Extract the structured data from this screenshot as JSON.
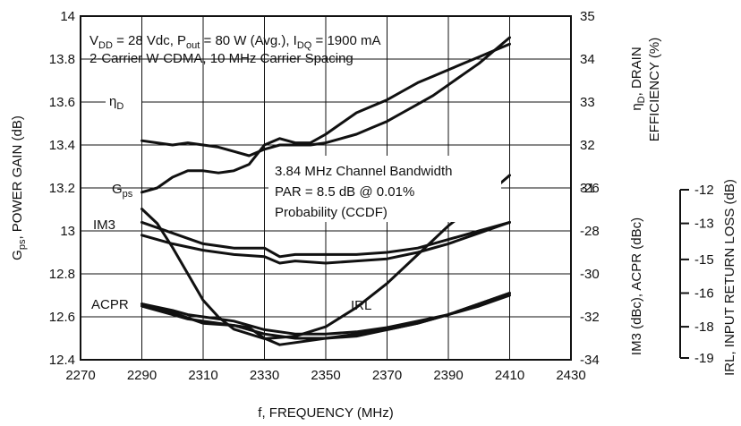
{
  "chart_data": {
    "type": "line",
    "xlabel": "f, FREQUENCY (MHz)",
    "x_ticks": [
      "2270",
      "2290",
      "2310",
      "2330",
      "2350",
      "2370",
      "2390",
      "2410",
      "2430"
    ],
    "xlim": [
      2270,
      2430
    ],
    "ylabel_left": "Gps, POWER GAIN (dB)",
    "yleft_ticks": [
      "12.4",
      "12.6",
      "12.8",
      "13",
      "13.2",
      "13.4",
      "13.6",
      "13.8",
      "14"
    ],
    "ylim_left": [
      12.4,
      14.0
    ],
    "ylabel_right_upper": "ηD, DRAIN EFFICIENCY (%)",
    "yright_upper_ticks": [
      "31",
      "32",
      "33",
      "34",
      "35"
    ],
    "ylabel_right_lower": "IM3 (dBc), ACPR (dBc)",
    "yright_lower_ticks": [
      "-26",
      "-28",
      "-30",
      "-32",
      "-34"
    ],
    "ylabel_irl": "IRL, INPUT RETURN LOSS (dB)",
    "irl_ticks": [
      "-12",
      "-13",
      "-15",
      "-16",
      "-18",
      "-19"
    ],
    "annotations": {
      "cond_line1": "VDD = 28 Vdc, Pout = 80 W (Avg.), IDQ = 1900 mA",
      "cond_line2": "2-Carrier W-CDMA, 10 MHz Carrier Spacing",
      "bw_line1": "3.84 MHz Channel Bandwidth",
      "bw_line2": "PAR = 8.5 dB @ 0.01%",
      "bw_line3": "Probability (CCDF)"
    },
    "series": [
      {
        "name": "ηD",
        "unit": "%",
        "x": [
          2290,
          2295,
          2300,
          2305,
          2310,
          2315,
          2320,
          2325,
          2330,
          2335,
          2340,
          2345,
          2350,
          2355,
          2360,
          2365,
          2370,
          2375,
          2380,
          2385,
          2390,
          2395,
          2400,
          2405,
          2410
        ],
        "values": [
          32.1,
          32.05,
          32.0,
          32.05,
          32.0,
          31.95,
          31.85,
          31.75,
          31.9,
          32.0,
          32.0,
          32.0,
          32.05,
          32.15,
          32.25,
          32.4,
          32.55,
          32.75,
          32.95,
          33.15,
          33.4,
          33.65,
          33.9,
          34.2,
          34.5
        ]
      },
      {
        "name": "Gps",
        "unit": "dB",
        "x": [
          2290,
          2295,
          2300,
          2305,
          2310,
          2315,
          2320,
          2325,
          2330,
          2335,
          2340,
          2345,
          2350,
          2355,
          2360,
          2365,
          2370,
          2375,
          2380,
          2385,
          2390,
          2395,
          2400,
          2405,
          2410
        ],
        "values": [
          13.18,
          13.2,
          13.25,
          13.28,
          13.28,
          13.27,
          13.28,
          13.31,
          13.4,
          13.43,
          13.41,
          13.41,
          13.45,
          13.5,
          13.55,
          13.58,
          13.61,
          13.65,
          13.69,
          13.72,
          13.75,
          13.78,
          13.81,
          13.84,
          13.87
        ]
      },
      {
        "name": "IM3",
        "unit": "dBc",
        "x": [
          2290,
          2300,
          2310,
          2320,
          2330,
          2335,
          2340,
          2350,
          2360,
          2370,
          2380,
          2390,
          2400,
          2410
        ],
        "values": [
          -27.6,
          -28.1,
          -28.6,
          -28.8,
          -28.8,
          -29.2,
          -29.1,
          -29.1,
          -29.1,
          -29.0,
          -28.8,
          -28.4,
          -28.0,
          -27.6
        ]
      },
      {
        "name": "IM3 (2)",
        "unit": "dBc",
        "x": [
          2290,
          2300,
          2310,
          2320,
          2330,
          2335,
          2340,
          2350,
          2360,
          2370,
          2380,
          2390,
          2400,
          2410
        ],
        "values": [
          -28.2,
          -28.6,
          -28.9,
          -29.1,
          -29.2,
          -29.5,
          -29.4,
          -29.5,
          -29.4,
          -29.3,
          -29.0,
          -28.6,
          -28.1,
          -27.6
        ]
      },
      {
        "name": "ACPR",
        "unit": "dBc",
        "x": [
          2290,
          2300,
          2305,
          2310,
          2320,
          2330,
          2340,
          2350,
          2360,
          2370,
          2380,
          2390,
          2400,
          2410
        ],
        "values": [
          -31.4,
          -31.7,
          -31.9,
          -32.0,
          -32.2,
          -32.6,
          -32.8,
          -32.8,
          -32.7,
          -32.5,
          -32.2,
          -31.9,
          -31.4,
          -30.9
        ]
      },
      {
        "name": "ACPR (2)",
        "unit": "dBc",
        "x": [
          2290,
          2300,
          2305,
          2310,
          2320,
          2330,
          2340,
          2350,
          2360,
          2370,
          2380,
          2390,
          2400,
          2410
        ],
        "values": [
          -31.5,
          -31.9,
          -32.1,
          -32.2,
          -32.4,
          -32.8,
          -33.0,
          -33.0,
          -32.9,
          -32.6,
          -32.3,
          -31.9,
          -31.5,
          -31.0
        ]
      },
      {
        "name": "ACPR (3)",
        "unit": "dBc",
        "x": [
          2290,
          2300,
          2310,
          2320,
          2325,
          2330,
          2335,
          2340,
          2350,
          2360,
          2370,
          2380,
          2390,
          2400,
          2410
        ],
        "values": [
          -31.4,
          -31.8,
          -32.3,
          -32.4,
          -32.5,
          -33.0,
          -33.3,
          -33.2,
          -33.0,
          -32.8,
          -32.6,
          -32.3,
          -31.9,
          -31.4,
          -30.9
        ]
      },
      {
        "name": "IRL",
        "unit": "dB",
        "x": [
          2290,
          2295,
          2300,
          2305,
          2310,
          2315,
          2320,
          2330,
          2340,
          2350,
          2360,
          2370,
          2380,
          2390,
          2400,
          2410
        ],
        "values": [
          -12.8,
          -13.4,
          -14.4,
          -15.5,
          -16.6,
          -17.3,
          -17.8,
          -18.2,
          -18.1,
          -17.7,
          -16.9,
          -15.9,
          -14.7,
          -13.5,
          -12.5,
          -11.4
        ]
      }
    ]
  }
}
